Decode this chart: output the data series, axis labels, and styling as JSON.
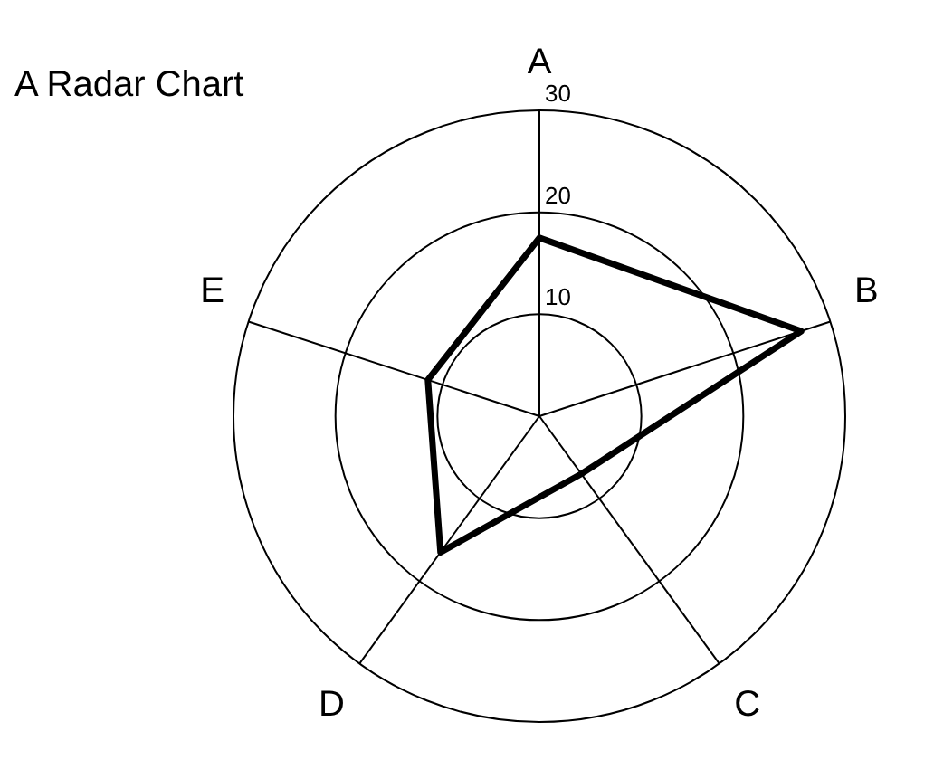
{
  "chart_data": {
    "type": "radar",
    "title": "A Radar Chart",
    "categories": [
      "A",
      "B",
      "C",
      "D",
      "E"
    ],
    "series": [
      {
        "color": "#000000",
        "values": [
          17.5,
          27,
          7,
          16.5,
          11.5
        ]
      }
    ],
    "ylim": [
      0,
      30
    ],
    "yticks": [
      10,
      20,
      30
    ],
    "grid": true,
    "legend": false,
    "marker": "none",
    "line_style": "solid"
  }
}
